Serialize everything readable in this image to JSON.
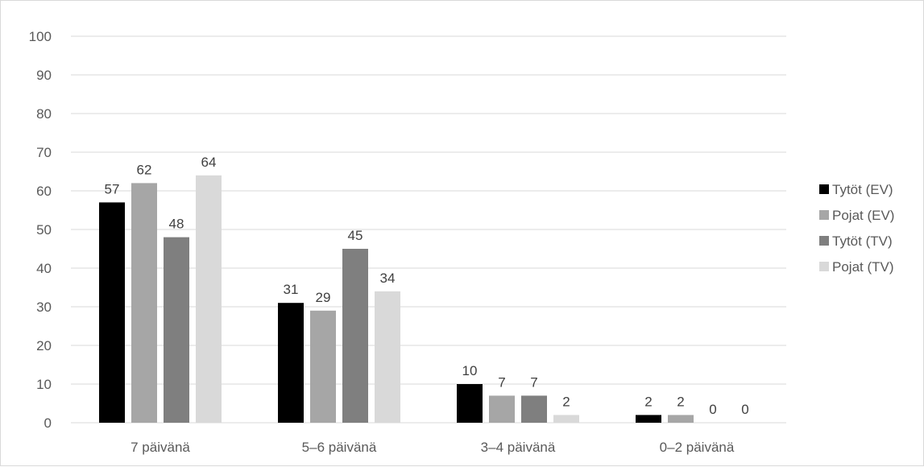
{
  "chart_data": {
    "type": "bar",
    "title": "",
    "xlabel": "",
    "ylabel": "",
    "categories": [
      "7 päivänä",
      "5–6 päivänä",
      "3–4 päivänä",
      "0–2 päivänä"
    ],
    "series": [
      {
        "name": "Tytöt (EV)",
        "color": "#000000",
        "values": [
          57,
          31,
          10,
          2
        ]
      },
      {
        "name": "Pojat (EV)",
        "color": "#a6a6a6",
        "values": [
          62,
          29,
          7,
          2
        ]
      },
      {
        "name": "Tytöt (TV)",
        "color": "#7f7f7f",
        "values": [
          48,
          45,
          7,
          0
        ]
      },
      {
        "name": "Pojat (TV)",
        "color": "#d9d9d9",
        "values": [
          64,
          34,
          2,
          0
        ]
      }
    ],
    "ylim": [
      0,
      100
    ],
    "yticks": [
      0,
      10,
      20,
      30,
      40,
      50,
      60,
      70,
      80,
      90,
      100
    ],
    "grid": true,
    "data_labels": true,
    "legend_position": "right"
  }
}
